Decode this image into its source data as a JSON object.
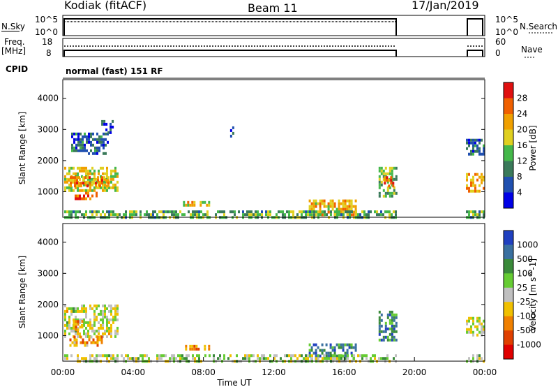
{
  "header": {
    "title": "Kodiak (fitACF)",
    "beam": "Beam 11",
    "date": "17/Jan/2019"
  },
  "params": {
    "nsky_label": "N.Sky",
    "nsky_ticks": [
      "10^5",
      "10^0"
    ],
    "nsearch_label": "N.Search",
    "nsearch_ticks": [
      "10^5",
      "10^0"
    ],
    "freq_label_1": "Freq.",
    "freq_label_2": "[MHz]",
    "freq_ticks": [
      "18",
      "8"
    ],
    "nave_label": "Nave",
    "nave_ticks": [
      "60",
      "0"
    ],
    "cpid_label": "CPID",
    "cpid_text": "normal (fast) 151 RF"
  },
  "chart_data": [
    {
      "type": "heatmap",
      "panel": "power",
      "ylabel": "Slant Range [km]",
      "yticks": [
        "4000",
        "3000",
        "2000",
        "1000"
      ],
      "ylim": [
        180,
        4600
      ],
      "xlim": [
        "00:00",
        "24:00"
      ],
      "colorbar_label": "Power [dB]",
      "colorbar_ticks": [
        "28",
        "24",
        "20",
        "16",
        "12",
        "8",
        "4"
      ],
      "colorbar_colors": [
        "#0000e6",
        "#2050b0",
        "#3a7a5a",
        "#44b84a",
        "#e0d020",
        "#f0a000",
        "#f06000",
        "#e01010"
      ],
      "data_gap": [
        "19:00",
        "22:50"
      ],
      "echo_regions": [
        {
          "t0": 0.0,
          "t1": 3.0,
          "r0": 1000,
          "r1": 1800,
          "level": 0.55
        },
        {
          "t0": 0.2,
          "t1": 2.5,
          "r0": 1150,
          "r1": 1500,
          "level": 0.75
        },
        {
          "t0": 0.6,
          "t1": 1.8,
          "r0": 750,
          "r1": 1000,
          "level": 0.8
        },
        {
          "t0": 0.4,
          "t1": 2.5,
          "r0": 2200,
          "r1": 2900,
          "level": 0.25
        },
        {
          "t0": 2.0,
          "t1": 2.8,
          "r0": 2900,
          "r1": 3300,
          "level": 0.2
        },
        {
          "t0": 6.8,
          "t1": 8.3,
          "r0": 560,
          "r1": 700,
          "level": 0.6
        },
        {
          "t0": 9.5,
          "t1": 9.7,
          "r0": 2800,
          "r1": 3100,
          "level": 0.2
        },
        {
          "t0": 14.0,
          "t1": 16.7,
          "r0": 300,
          "r1": 750,
          "level": 0.65
        },
        {
          "t0": 18.0,
          "t1": 19.0,
          "r0": 900,
          "r1": 1800,
          "level": 0.45
        },
        {
          "t0": 18.3,
          "t1": 18.8,
          "r0": 1200,
          "r1": 1500,
          "level": 0.8
        },
        {
          "t0": 23.0,
          "t1": 24.0,
          "r0": 1000,
          "r1": 1600,
          "level": 0.7
        },
        {
          "t0": 23.0,
          "t1": 24.0,
          "r0": 2200,
          "r1": 2700,
          "level": 0.25
        },
        {
          "t0": 0.0,
          "t1": 19.0,
          "r0": 180,
          "r1": 400,
          "level": 0.4
        },
        {
          "t0": 23.0,
          "t1": 24.0,
          "r0": 180,
          "r1": 400,
          "level": 0.4
        }
      ]
    },
    {
      "type": "heatmap",
      "panel": "velocity",
      "ylabel": "Slant Range [km]",
      "yticks": [
        "4000",
        "3000",
        "2000",
        "1000"
      ],
      "ylim": [
        180,
        4600
      ],
      "xlim": [
        "00:00",
        "24:00"
      ],
      "xticks": [
        "00:00",
        "04:00",
        "08:00",
        "12:00",
        "16:00",
        "20:00",
        "00:00"
      ],
      "xlabel": "Time UT",
      "colorbar_label": "Velocity [m s^-1]",
      "colorbar_ticks": [
        "1000",
        "500",
        "100",
        "25",
        "-25",
        "-100",
        "-500",
        "-1000"
      ],
      "colorbar_colors": [
        "#2040c0",
        "#3a70a0",
        "#3a8a3a",
        "#66cc33",
        "#c0c0c0",
        "#f0c000",
        "#f08000",
        "#e04000",
        "#e00000"
      ],
      "data_gap": [
        "19:00",
        "22:50"
      ],
      "echo_regions": [
        {
          "t0": 0.0,
          "t1": 3.0,
          "r0": 1000,
          "r1": 2000,
          "level": 0.5
        },
        {
          "t0": 0.3,
          "t1": 2.2,
          "r0": 700,
          "r1": 1000,
          "level": 0.3
        },
        {
          "t0": 0.5,
          "t1": 1.0,
          "r0": 1200,
          "r1": 1500,
          "level": 0.3
        },
        {
          "t0": 6.8,
          "t1": 8.3,
          "r0": 560,
          "r1": 700,
          "level": 0.3
        },
        {
          "t0": 14.0,
          "t1": 16.7,
          "r0": 300,
          "r1": 750,
          "level": 0.78
        },
        {
          "t0": 18.0,
          "t1": 19.0,
          "r0": 900,
          "r1": 1800,
          "level": 0.75
        },
        {
          "t0": 23.0,
          "t1": 24.0,
          "r0": 1000,
          "r1": 1600,
          "level": 0.5
        },
        {
          "t0": 0.0,
          "t1": 19.0,
          "r0": 180,
          "r1": 400,
          "level": 0.55
        },
        {
          "t0": 23.0,
          "t1": 24.0,
          "r0": 180,
          "r1": 400,
          "level": 0.55
        }
      ]
    }
  ]
}
